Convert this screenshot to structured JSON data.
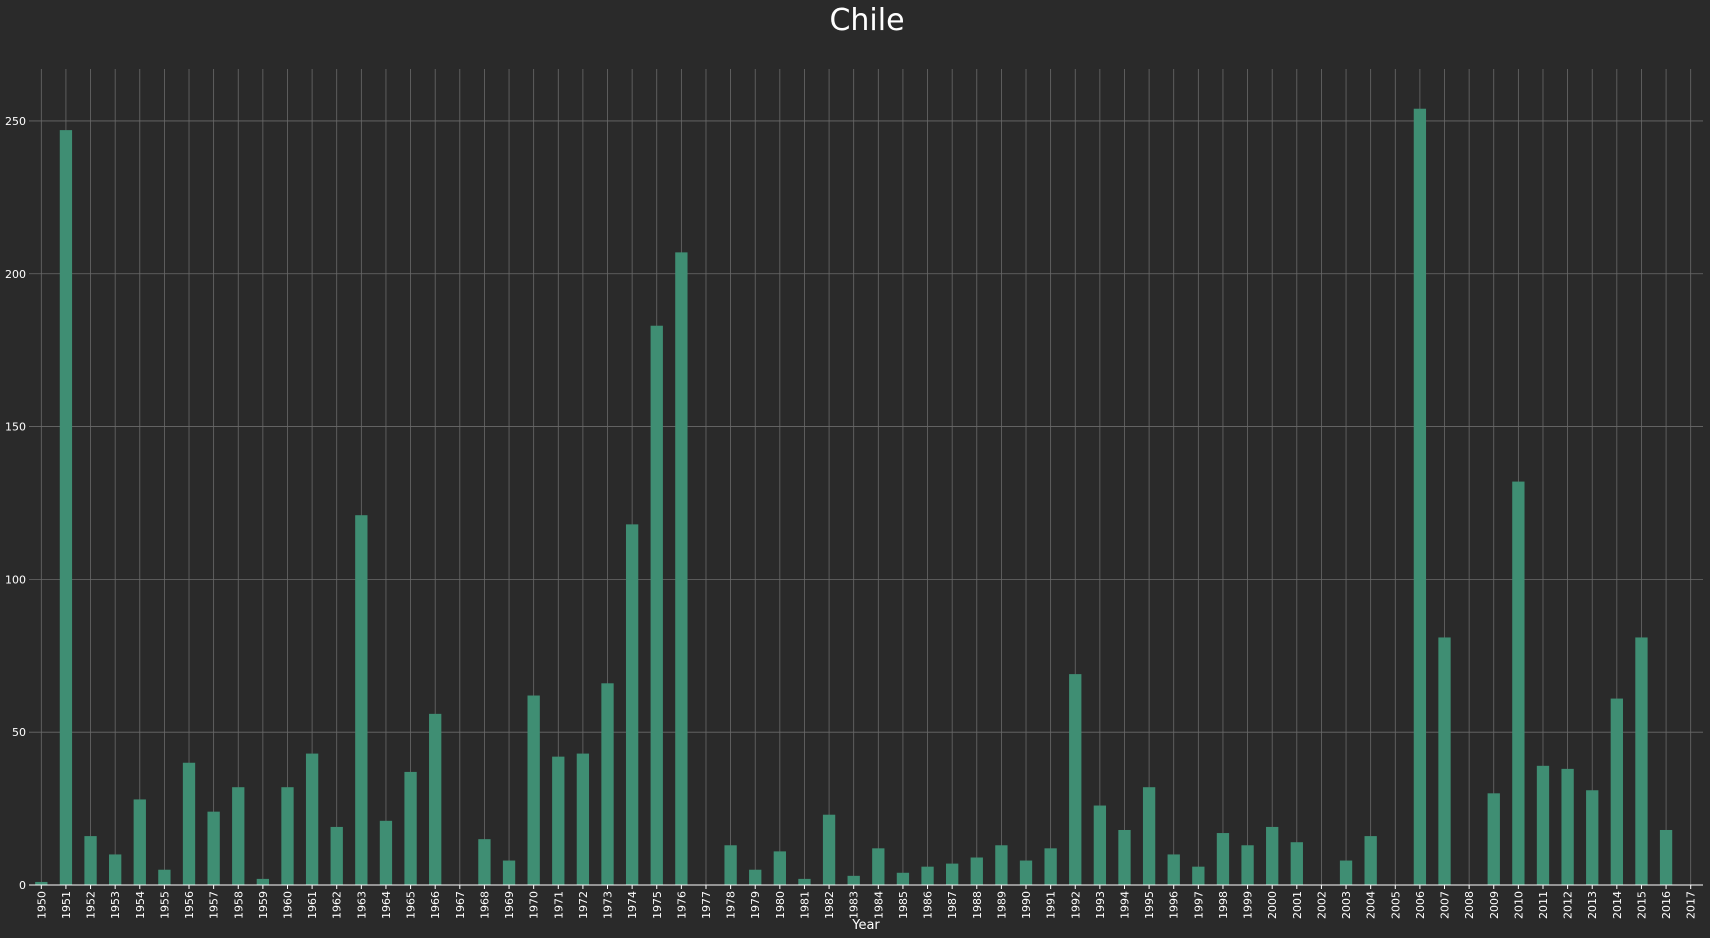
{
  "chart_data": {
    "type": "bar",
    "title": "Chile",
    "xlabel": "Year",
    "ylabel": "",
    "ylim": [
      0,
      267
    ],
    "yticks": [
      0,
      50,
      100,
      150,
      200,
      250
    ],
    "grid": true,
    "legend": "none",
    "colors": {
      "background": "#2a2a2a",
      "bar": "#3f8e73",
      "grid": "#6a6a6a",
      "text": "#ffffff"
    },
    "categories": [
      "1950",
      "1951",
      "1952",
      "1953",
      "1954",
      "1955",
      "1956",
      "1957",
      "1958",
      "1959",
      "1960",
      "1961",
      "1962",
      "1963",
      "1964",
      "1965",
      "1966",
      "1967",
      "1968",
      "1969",
      "1970",
      "1971",
      "1972",
      "1973",
      "1974",
      "1975",
      "1976",
      "1977",
      "1978",
      "1979",
      "1980",
      "1981",
      "1982",
      "1983",
      "1984",
      "1985",
      "1986",
      "1987",
      "1988",
      "1989",
      "1990",
      "1991",
      "1992",
      "1993",
      "1994",
      "1995",
      "1996",
      "1997",
      "1998",
      "1999",
      "2000",
      "2001",
      "2002",
      "2003",
      "2004",
      "2005",
      "2006",
      "2007",
      "2008",
      "2009",
      "2010",
      "2011",
      "2012",
      "2013",
      "2014",
      "2015",
      "2016",
      "2017"
    ],
    "values": [
      1,
      247,
      16,
      10,
      28,
      5,
      40,
      24,
      32,
      2,
      32,
      43,
      19,
      121,
      21,
      37,
      56,
      0,
      15,
      8,
      62,
      42,
      43,
      66,
      118,
      183,
      207,
      0,
      13,
      5,
      11,
      2,
      23,
      3,
      12,
      4,
      6,
      7,
      9,
      13,
      8,
      12,
      69,
      26,
      18,
      32,
      10,
      6,
      17,
      13,
      19,
      14,
      0,
      8,
      16,
      0,
      254,
      81,
      0,
      30,
      132,
      39,
      38,
      31,
      61,
      81,
      18,
      0
    ]
  }
}
